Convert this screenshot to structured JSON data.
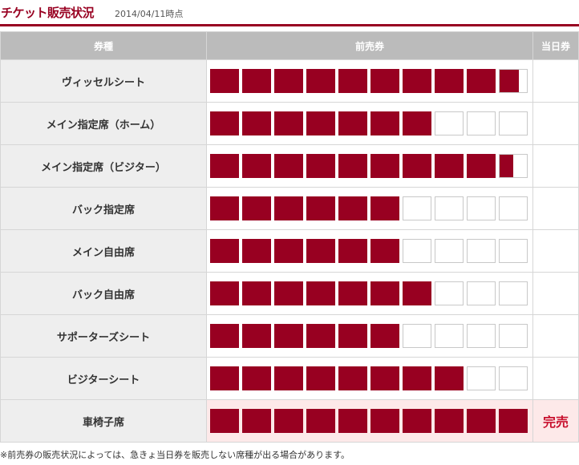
{
  "header": {
    "title": "チケット販売状況",
    "date": "2014/04/11時点"
  },
  "table": {
    "columns": [
      "券種",
      "前売券",
      "当日券"
    ],
    "colors": {
      "sold": "#980021",
      "soldout_text": "#c8102e",
      "soldout_bg": "#fde9e9"
    },
    "segments": 10,
    "rows": [
      {
        "name": "ヴィッセルシート",
        "advance_sold_fraction": 0.97,
        "same_day": ""
      },
      {
        "name": "メイン指定席（ホーム）",
        "advance_sold_fraction": 0.7,
        "same_day": ""
      },
      {
        "name": "メイン指定席（ビジター）",
        "advance_sold_fraction": 0.95,
        "same_day": ""
      },
      {
        "name": "バック指定席",
        "advance_sold_fraction": 0.6,
        "same_day": ""
      },
      {
        "name": "メイン自由席",
        "advance_sold_fraction": 0.6,
        "same_day": ""
      },
      {
        "name": "バック自由席",
        "advance_sold_fraction": 0.7,
        "same_day": ""
      },
      {
        "name": "サポーターズシート",
        "advance_sold_fraction": 0.6,
        "same_day": ""
      },
      {
        "name": "ビジターシート",
        "advance_sold_fraction": 0.8,
        "same_day": ""
      },
      {
        "name": "車椅子席",
        "advance_sold_fraction": 1.0,
        "same_day": "完売"
      }
    ]
  },
  "note": "※前売券の販売状況によっては、急きょ当日券を販売しない席種が出る場合があります。"
}
